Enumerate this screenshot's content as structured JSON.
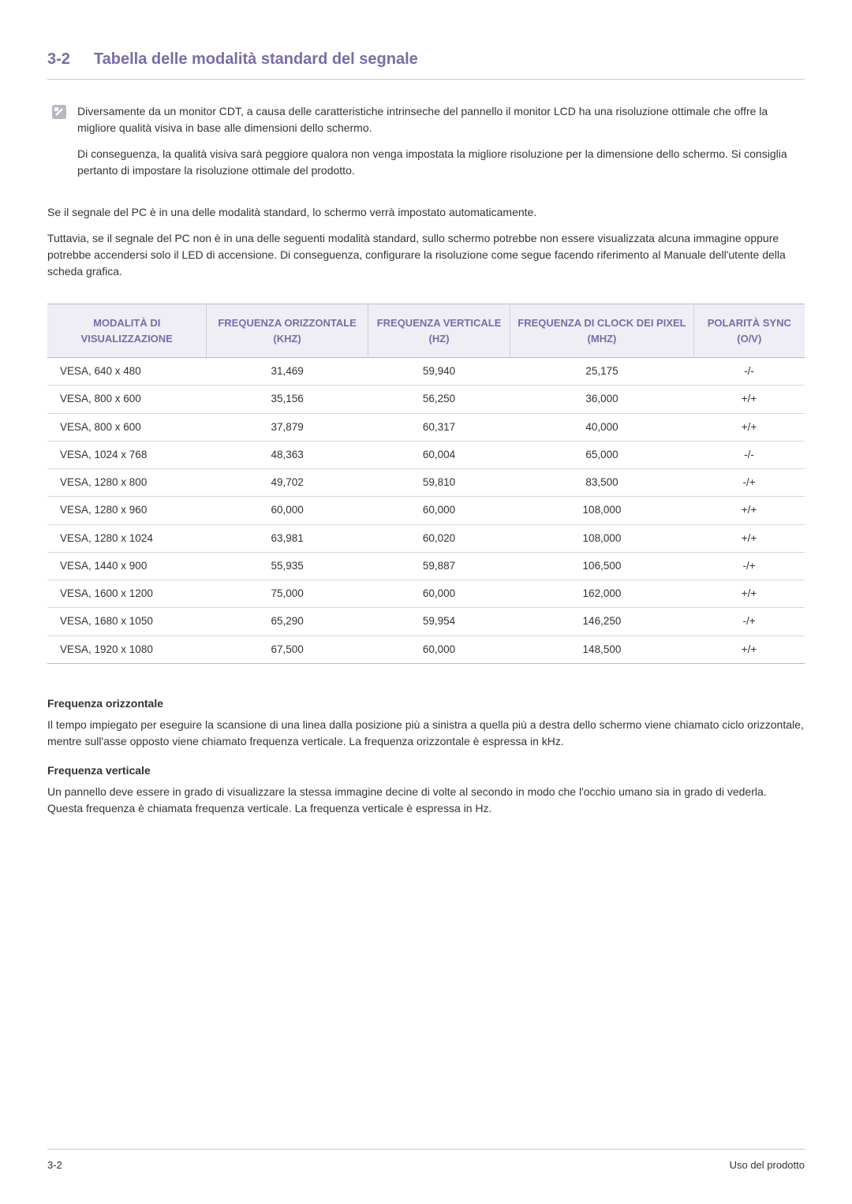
{
  "section": {
    "number": "3-2",
    "title": "Tabella delle modalità standard del segnale"
  },
  "note": {
    "p1": "Diversamente da un monitor CDT, a causa delle caratteristiche intrinseche del pannello il monitor LCD ha una risoluzione ottimale che offre la migliore qualità visiva in base alle dimensioni dello schermo.",
    "p2": "Di conseguenza, la qualità visiva sarà peggiore qualora non venga impostata la migliore risoluzione per la dimensione dello schermo. Si consiglia pertanto di impostare la risoluzione ottimale del prodotto."
  },
  "body": {
    "p1": "Se il segnale del PC è in una delle modalità standard, lo schermo verrà impostato automaticamente.",
    "p2": "Tuttavia, se il segnale del PC non è in una delle seguenti modalità standard, sullo schermo potrebbe non essere visualizzata alcuna immagine oppure potrebbe accendersi solo il LED di accensione. Di conseguenza, configurare la risoluzione come segue facendo riferimento al Manuale dell'utente della scheda grafica."
  },
  "table": {
    "columns": [
      "MODALITÀ DI VISUALIZZAZIONE",
      "FREQUENZA ORIZZONTALE (KHZ)",
      "FREQUENZA VERTICALE (HZ)",
      "FREQUENZA DI CLOCK DEI PIXEL (MHZ)",
      "POLARITÀ SYNC (O/V)"
    ],
    "rows": [
      [
        "VESA, 640 x 480",
        "31,469",
        "59,940",
        "25,175",
        "-/-"
      ],
      [
        "VESA, 800 x 600",
        "35,156",
        "56,250",
        "36,000",
        "+/+"
      ],
      [
        "VESA, 800 x 600",
        "37,879",
        "60,317",
        "40,000",
        "+/+"
      ],
      [
        "VESA, 1024 x 768",
        "48,363",
        "60,004",
        "65,000",
        "-/-"
      ],
      [
        "VESA, 1280 x 800",
        "49,702",
        "59,810",
        "83,500",
        "-/+"
      ],
      [
        "VESA, 1280 x 960",
        "60,000",
        "60,000",
        "108,000",
        "+/+"
      ],
      [
        "VESA, 1280 x 1024",
        "63,981",
        "60,020",
        "108,000",
        "+/+"
      ],
      [
        "VESA, 1440 x 900",
        "55,935",
        "59,887",
        "106,500",
        "-/+"
      ],
      [
        "VESA, 1600 x 1200",
        "75,000",
        "60,000",
        "162,000",
        "+/+"
      ],
      [
        "VESA, 1680 x 1050",
        "65,290",
        "59,954",
        "146,250",
        "-/+"
      ],
      [
        "VESA, 1920 x 1080",
        "67,500",
        "60,000",
        "148,500",
        "+/+"
      ]
    ]
  },
  "defs": {
    "h1": "Frequenza orizzontale",
    "t1": "Il tempo impiegato per eseguire la scansione di una linea dalla posizione più a sinistra a quella più a destra dello schermo viene chiamato ciclo orizzontale, mentre sull'asse opposto viene chiamato frequenza verticale. La frequenza orizzontale è espressa in kHz.",
    "h2": "Frequenza verticale",
    "t2": "Un pannello deve essere in grado di visualizzare la stessa immagine decine di volte al secondo in modo che l'occhio umano sia in grado di vederla. Questa frequenza è chiamata frequenza verticale. La frequenza verticale è espressa in Hz."
  },
  "footer": {
    "left": "3-2",
    "right": "Uso del prodotto"
  }
}
